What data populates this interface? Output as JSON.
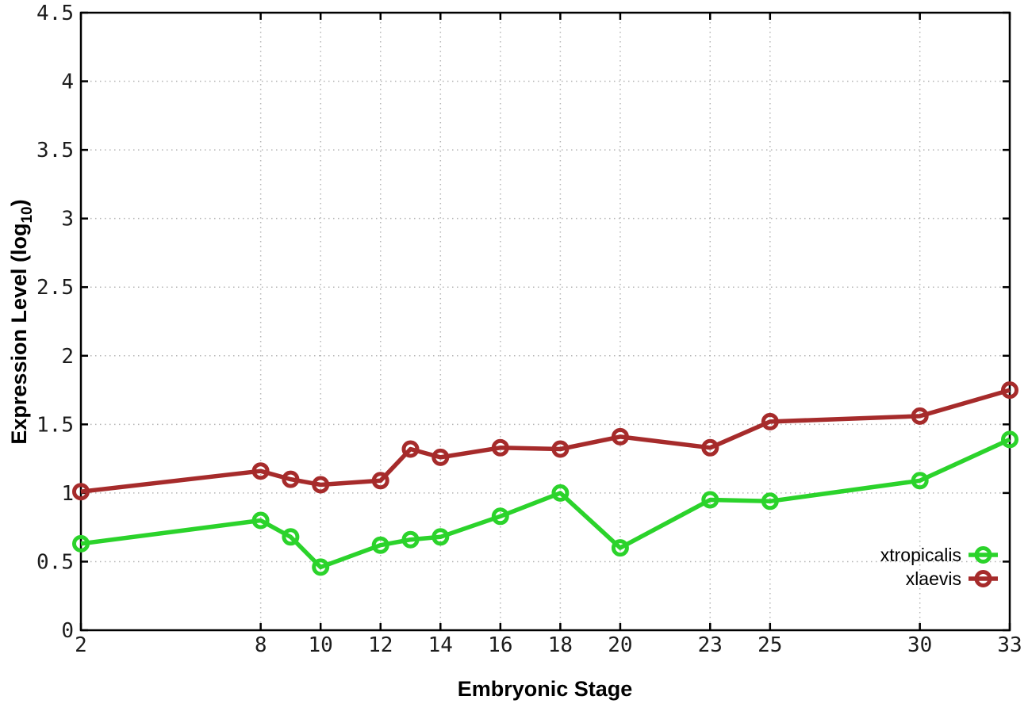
{
  "chart_data": {
    "type": "line",
    "title": "",
    "xlabel": "Embryonic Stage",
    "ylabel": "Expression Level (log10)",
    "ylabel_parts": {
      "main": "Expression Level (log",
      "sub": "10",
      "close": ")"
    },
    "x": [
      2,
      8,
      9,
      10,
      12,
      13,
      14,
      16,
      18,
      20,
      23,
      25,
      30,
      33
    ],
    "series": [
      {
        "name": "xtropicalis",
        "color": "#2bd32b",
        "values": [
          0.63,
          0.8,
          0.68,
          0.46,
          0.62,
          0.66,
          0.68,
          0.83,
          1.0,
          0.6,
          0.95,
          0.94,
          1.09,
          1.39
        ]
      },
      {
        "name": "xlaevis",
        "color": "#a62b2b",
        "values": [
          1.01,
          1.16,
          1.1,
          1.06,
          1.09,
          1.32,
          1.26,
          1.33,
          1.32,
          1.41,
          1.33,
          1.52,
          1.56,
          1.75
        ]
      }
    ],
    "xlim": [
      2,
      33
    ],
    "ylim": [
      0,
      4.5
    ],
    "x_ticks": [
      2,
      8,
      10,
      12,
      14,
      16,
      18,
      20,
      23,
      25,
      30,
      33
    ],
    "x_tick_labels": [
      "2",
      "8",
      "10",
      "12",
      "14",
      "16",
      "18",
      "20",
      "23",
      "25",
      "30",
      "33"
    ],
    "y_ticks": [
      0,
      0.5,
      1,
      1.5,
      2,
      2.5,
      3,
      3.5,
      4,
      4.5
    ],
    "y_tick_labels": [
      "0",
      "0.5",
      "1",
      "1.5",
      "2",
      "2.5",
      "3",
      "3.5",
      "4",
      "4.5"
    ],
    "grid": true,
    "legend_position": "bottom-right",
    "legend": {
      "items": [
        {
          "label": "xtropicalis",
          "color": "#2bd32b"
        },
        {
          "label": "xlaevis",
          "color": "#a62b2b"
        }
      ]
    },
    "style": {
      "grid_color": "#b5b5b5",
      "border_color": "#000000",
      "marker": "open-circle",
      "line_width": 5.5,
      "marker_radius": 8.5,
      "marker_stroke": 5
    }
  }
}
